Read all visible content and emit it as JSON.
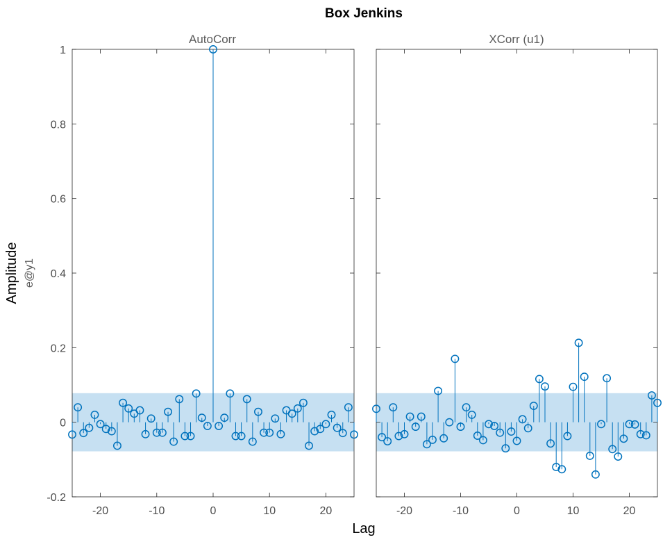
{
  "chart_data": {
    "type": "stem",
    "title": "Box Jenkins",
    "xlabel": "Lag",
    "ylabel": "Amplitude",
    "channel_label": "e@y1",
    "ylim": [
      -0.2,
      1.0
    ],
    "yticks": [
      -0.2,
      0,
      0.2,
      0.4,
      0.6,
      0.8,
      1
    ],
    "ytick_labels": [
      "-0.2",
      "0",
      "0.2",
      "0.4",
      "0.6",
      "0.8",
      "1"
    ],
    "xlim": [
      -25,
      25
    ],
    "xticks": [
      -20,
      -10,
      0,
      10,
      20
    ],
    "xtick_labels": [
      "-20",
      "-10",
      "0",
      "10",
      "20"
    ],
    "confidence_band": [
      -0.078,
      0.078
    ],
    "stem_color": "#0072bd",
    "band_color": "#c6e0f2",
    "panels": [
      {
        "title": "AutoCorr",
        "lags": [
          -25,
          -24,
          -23,
          -22,
          -21,
          -20,
          -19,
          -18,
          -17,
          -16,
          -15,
          -14,
          -13,
          -12,
          -11,
          -10,
          -9,
          -8,
          -7,
          -6,
          -5,
          -4,
          -3,
          -2,
          -1,
          0,
          1,
          2,
          3,
          4,
          5,
          6,
          7,
          8,
          9,
          10,
          11,
          12,
          13,
          14,
          15,
          16,
          17,
          18,
          19,
          20,
          21,
          22,
          23,
          24,
          25
        ],
        "values": [
          -0.033,
          0.04,
          -0.029,
          -0.015,
          0.02,
          -0.005,
          -0.018,
          -0.024,
          -0.063,
          0.052,
          0.037,
          0.023,
          0.032,
          -0.032,
          0.01,
          -0.028,
          -0.028,
          0.028,
          -0.052,
          0.062,
          -0.037,
          -0.037,
          0.077,
          0.012,
          -0.01,
          1.0,
          -0.01,
          0.012,
          0.077,
          -0.037,
          -0.037,
          0.062,
          -0.052,
          0.028,
          -0.028,
          -0.028,
          0.01,
          -0.032,
          0.032,
          0.023,
          0.037,
          0.052,
          -0.063,
          -0.024,
          -0.018,
          -0.005,
          0.02,
          -0.015,
          -0.029,
          0.04,
          -0.033
        ]
      },
      {
        "title": "XCorr (u1)",
        "lags": [
          -25,
          -24,
          -23,
          -22,
          -21,
          -20,
          -19,
          -18,
          -17,
          -16,
          -15,
          -14,
          -13,
          -12,
          -11,
          -10,
          -9,
          -8,
          -7,
          -6,
          -5,
          -4,
          -3,
          -2,
          -1,
          0,
          1,
          2,
          3,
          4,
          5,
          6,
          7,
          8,
          9,
          10,
          11,
          12,
          13,
          14,
          15,
          16,
          17,
          18,
          19,
          20,
          21,
          22,
          23,
          24,
          25
        ],
        "values": [
          0.036,
          -0.04,
          -0.051,
          0.04,
          -0.037,
          -0.032,
          0.015,
          -0.012,
          0.015,
          -0.059,
          -0.047,
          0.084,
          -0.043,
          0.0,
          0.17,
          -0.012,
          0.04,
          0.02,
          -0.036,
          -0.048,
          -0.005,
          -0.01,
          -0.028,
          -0.07,
          -0.025,
          -0.05,
          0.008,
          -0.016,
          0.044,
          0.116,
          0.096,
          -0.057,
          -0.12,
          -0.126,
          -0.037,
          0.095,
          0.213,
          0.122,
          -0.09,
          -0.14,
          -0.005,
          0.118,
          -0.072,
          -0.092,
          -0.044,
          -0.005,
          -0.006,
          -0.032,
          -0.035,
          0.072,
          0.052
        ]
      }
    ]
  }
}
